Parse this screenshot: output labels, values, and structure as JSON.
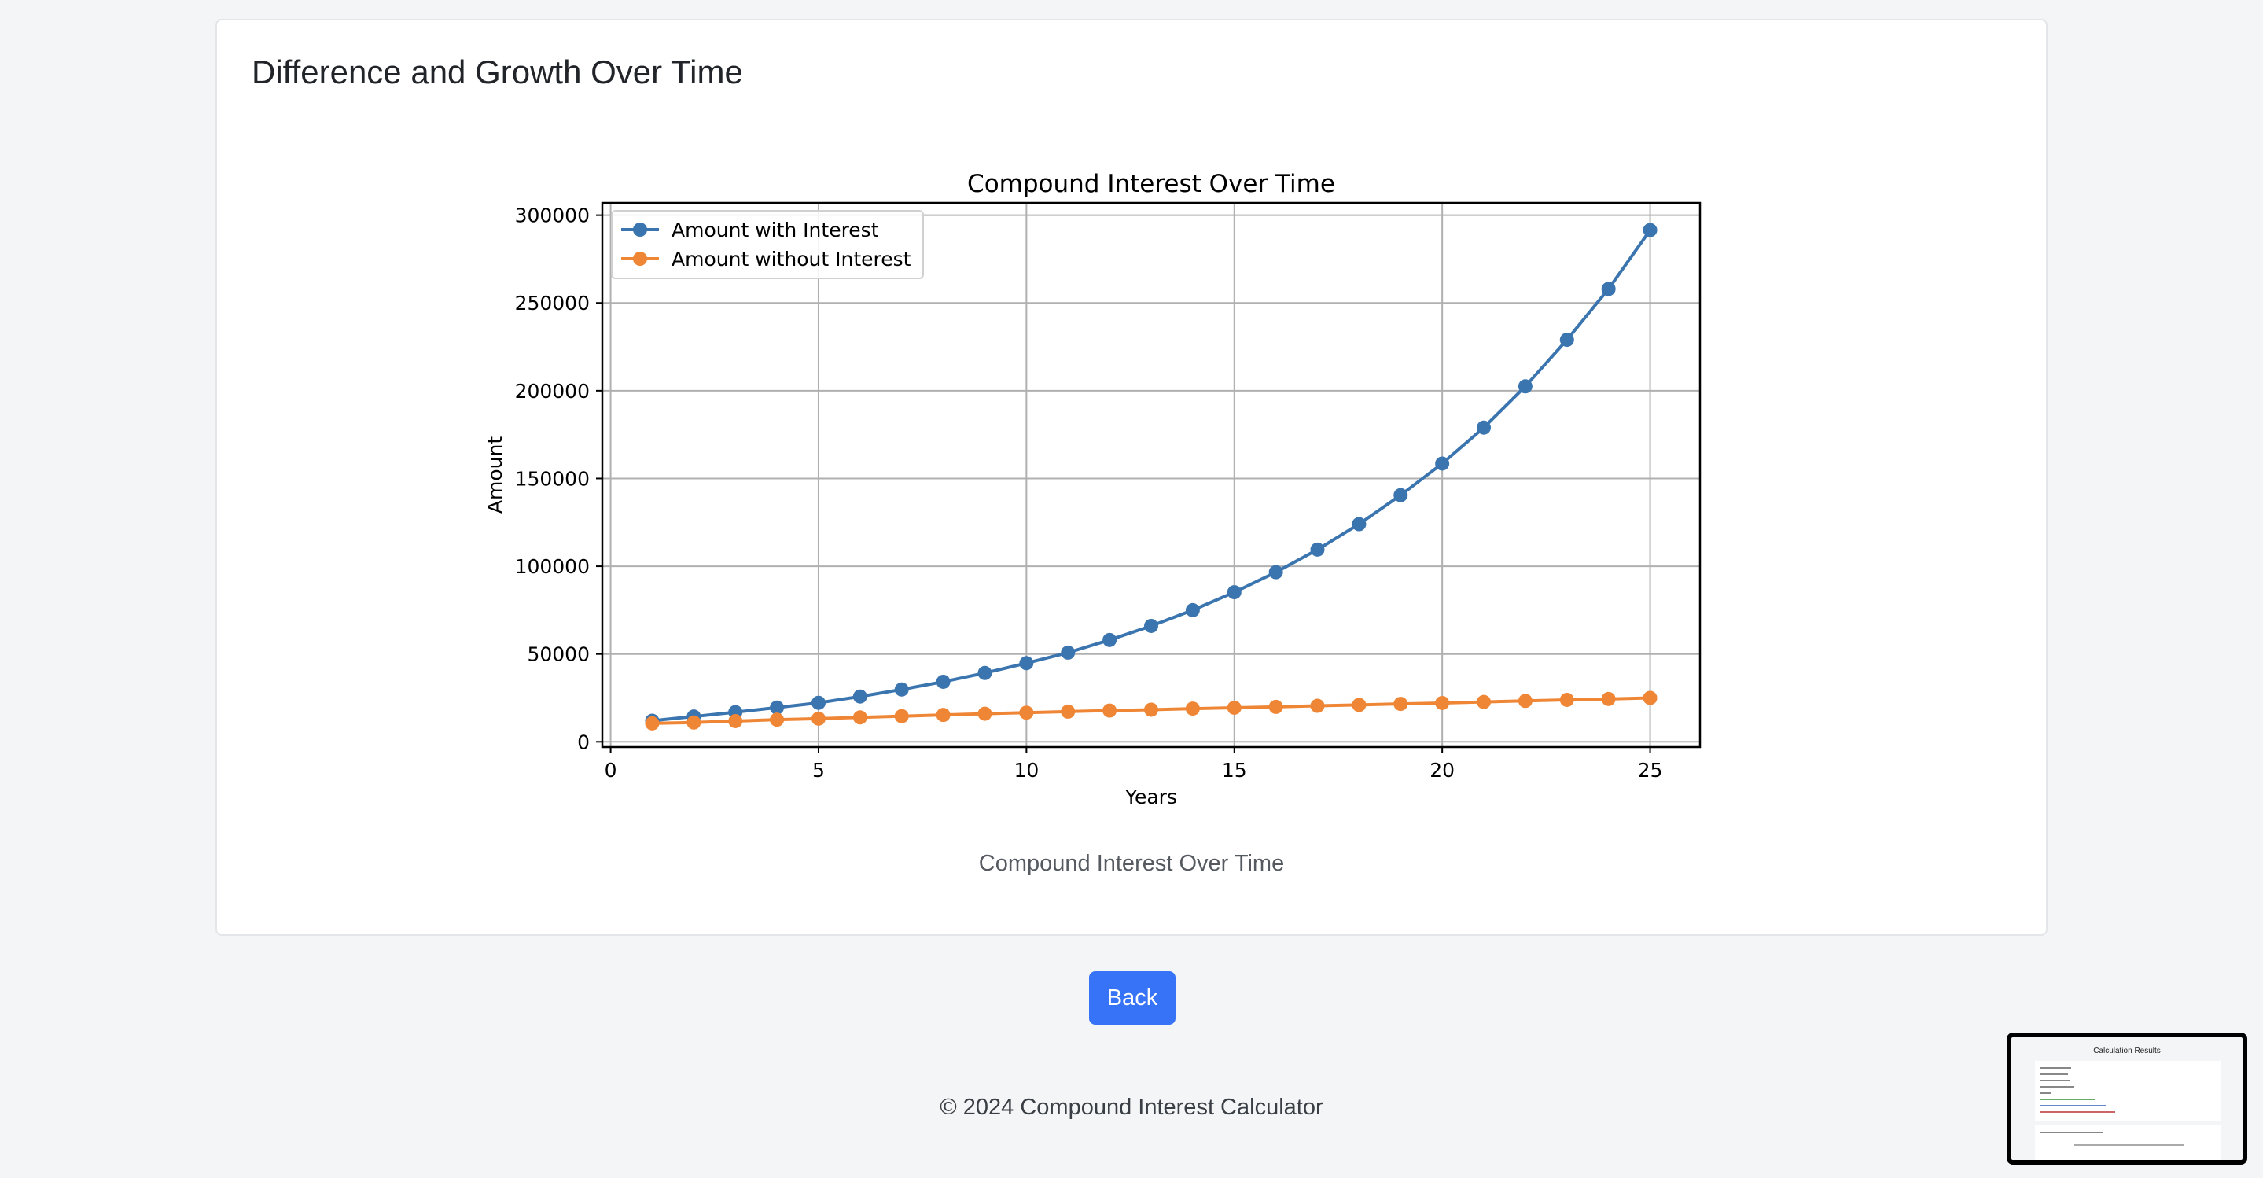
{
  "section": {
    "title": "Difference and Growth Over Time",
    "caption": "Compound Interest Over Time"
  },
  "back_label": "Back",
  "footer_text": "© 2024 Compound Interest Calculator",
  "thumbnail": {
    "title": "Calculation Results"
  },
  "chart_data": {
    "type": "line",
    "title": "Compound Interest Over Time",
    "xlabel": "Years",
    "ylabel": "Amount",
    "xlim": [
      -0.2,
      26.2
    ],
    "ylim": [
      -3000,
      307000
    ],
    "xticks": [
      0,
      5,
      10,
      15,
      20,
      25
    ],
    "yticks": [
      0,
      50000,
      100000,
      150000,
      200000,
      250000,
      300000
    ],
    "grid": true,
    "legend_position": "upper left",
    "x": [
      1,
      2,
      3,
      4,
      5,
      6,
      7,
      8,
      9,
      10,
      11,
      12,
      13,
      14,
      15,
      16,
      17,
      18,
      19,
      20,
      21,
      22,
      23,
      24,
      25
    ],
    "series": [
      {
        "name": "Amount with Interest",
        "color": "#3b75af",
        "values": [
          12000,
          14400,
          16900,
          19500,
          22200,
          25800,
          29800,
          34200,
          39200,
          44800,
          50800,
          58000,
          66000,
          75000,
          85200,
          96600,
          109500,
          124000,
          140500,
          158500,
          179000,
          202500,
          229000,
          258000,
          291500
        ]
      },
      {
        "name": "Amount without Interest",
        "color": "#ef8636",
        "values": [
          10500,
          11000,
          11800,
          12600,
          13200,
          13900,
          14600,
          15300,
          16000,
          16600,
          17200,
          17800,
          18300,
          18900,
          19400,
          19900,
          20500,
          21000,
          21600,
          22100,
          22700,
          23300,
          23900,
          24400,
          25000
        ]
      }
    ]
  }
}
